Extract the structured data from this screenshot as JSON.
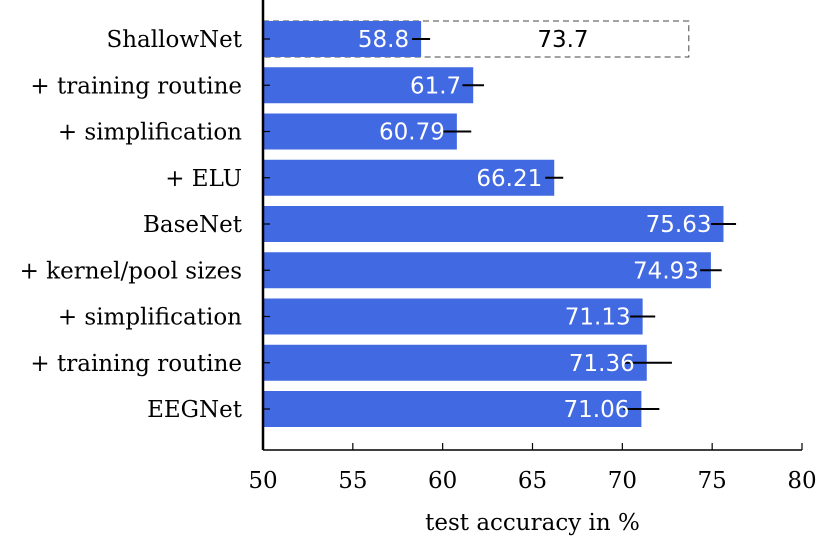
{
  "chart_data": {
    "type": "bar",
    "orientation": "horizontal",
    "title": "",
    "xlabel": "test accuracy in %",
    "ylabel": "",
    "xlim": [
      50,
      80
    ],
    "xticks": [
      "50",
      "55",
      "60",
      "65",
      "70",
      "75",
      "80"
    ],
    "grid": false,
    "bar_color": "#4169E1",
    "categories": [
      "ShallowNet",
      "+ training routine",
      "+ simplification",
      "+ ELU",
      "BaseNet",
      "+ kernel/pool sizes",
      "+ simplification",
      "+ training routine",
      "EEGNet"
    ],
    "values": [
      58.8,
      61.7,
      60.79,
      66.21,
      75.63,
      74.93,
      71.13,
      71.36,
      71.06
    ],
    "value_labels": [
      "58.8",
      "61.7",
      "60.79",
      "66.21",
      "75.63",
      "74.93",
      "71.13",
      "71.36",
      "71.06"
    ],
    "error": [
      0.5,
      0.6,
      0.8,
      0.5,
      0.7,
      0.6,
      0.7,
      1.4,
      1.0
    ],
    "reference_bar": {
      "category": "ShallowNet",
      "value": 73.7,
      "label": "73.7",
      "style": "dashed outline"
    }
  }
}
